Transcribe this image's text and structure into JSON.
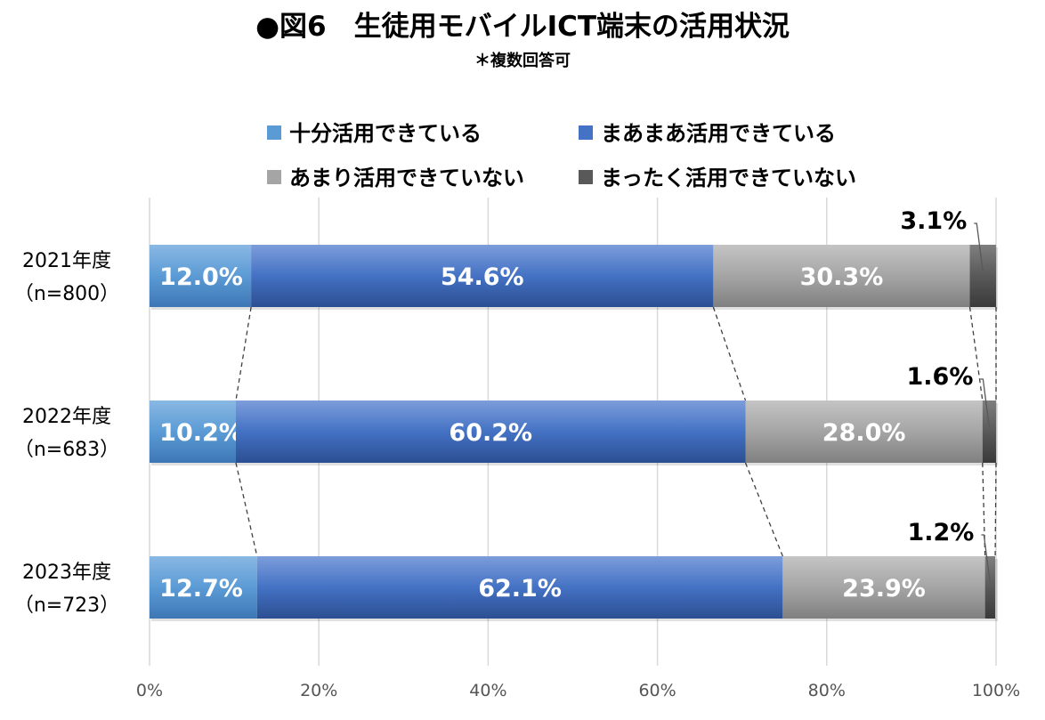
{
  "chart_data": {
    "type": "bar",
    "orientation": "horizontal",
    "stacked": true,
    "percent_stacked": true,
    "title": "●図6　生徒用モバイルICT端末の活用状況",
    "subtitle": "＊複数回答可",
    "categories": [
      {
        "year": "2021年度",
        "n": "（n=800）"
      },
      {
        "year": "2022年度",
        "n": "（n=683）"
      },
      {
        "year": "2023年度",
        "n": "（n=723）"
      }
    ],
    "series": [
      {
        "name": "十分活用できている",
        "values": [
          12.0,
          10.2,
          12.7
        ],
        "labels": [
          "12.0%",
          "10.2%",
          "12.7%"
        ]
      },
      {
        "name": "まあまあ活用できている",
        "values": [
          54.6,
          60.2,
          62.1
        ],
        "labels": [
          "54.6%",
          "60.2%",
          "62.1%"
        ]
      },
      {
        "name": "あまり活用できていない",
        "values": [
          30.3,
          28.0,
          23.9
        ],
        "labels": [
          "30.3%",
          "28.0%",
          "23.9%"
        ]
      },
      {
        "name": "まったく活用できていない",
        "values": [
          3.1,
          1.6,
          1.2
        ],
        "labels": [
          "3.1%",
          "1.6%",
          "1.2%"
        ]
      }
    ],
    "colors": [
      "#5b9bd5",
      "#4472c4",
      "#a5a5a5",
      "#595959"
    ],
    "xlim": [
      0,
      100
    ],
    "xticks": [
      "0%",
      "20%",
      "40%",
      "60%",
      "80%",
      "100%"
    ],
    "grid": true,
    "legend_position": "top",
    "series_lines": true
  }
}
